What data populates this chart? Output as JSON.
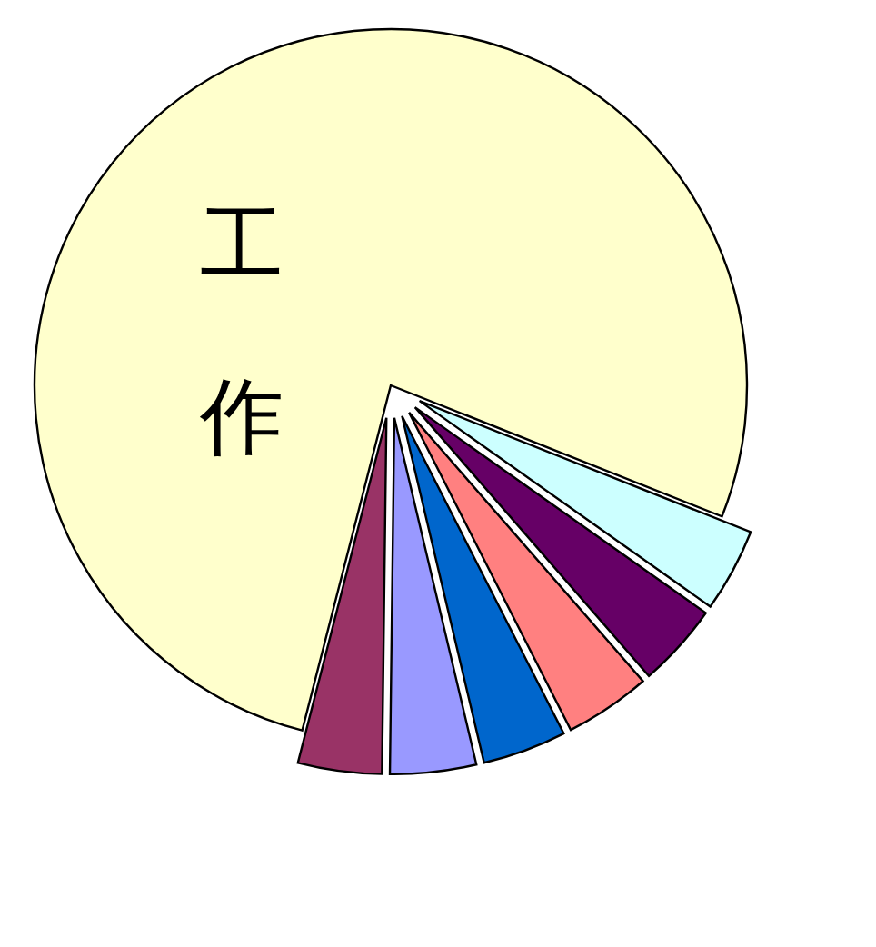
{
  "chart_data": {
    "type": "pie",
    "categories": [
      "工作",
      null,
      null,
      null,
      null,
      null,
      null
    ],
    "values": [
      77,
      3.8,
      3.8,
      3.9,
      3.8,
      3.9,
      3.8
    ],
    "colors": [
      "#ffffcc",
      "#ccffff",
      "#660066",
      "#ff8080",
      "#0066cc",
      "#9999ff",
      "#993366"
    ]
  }
}
